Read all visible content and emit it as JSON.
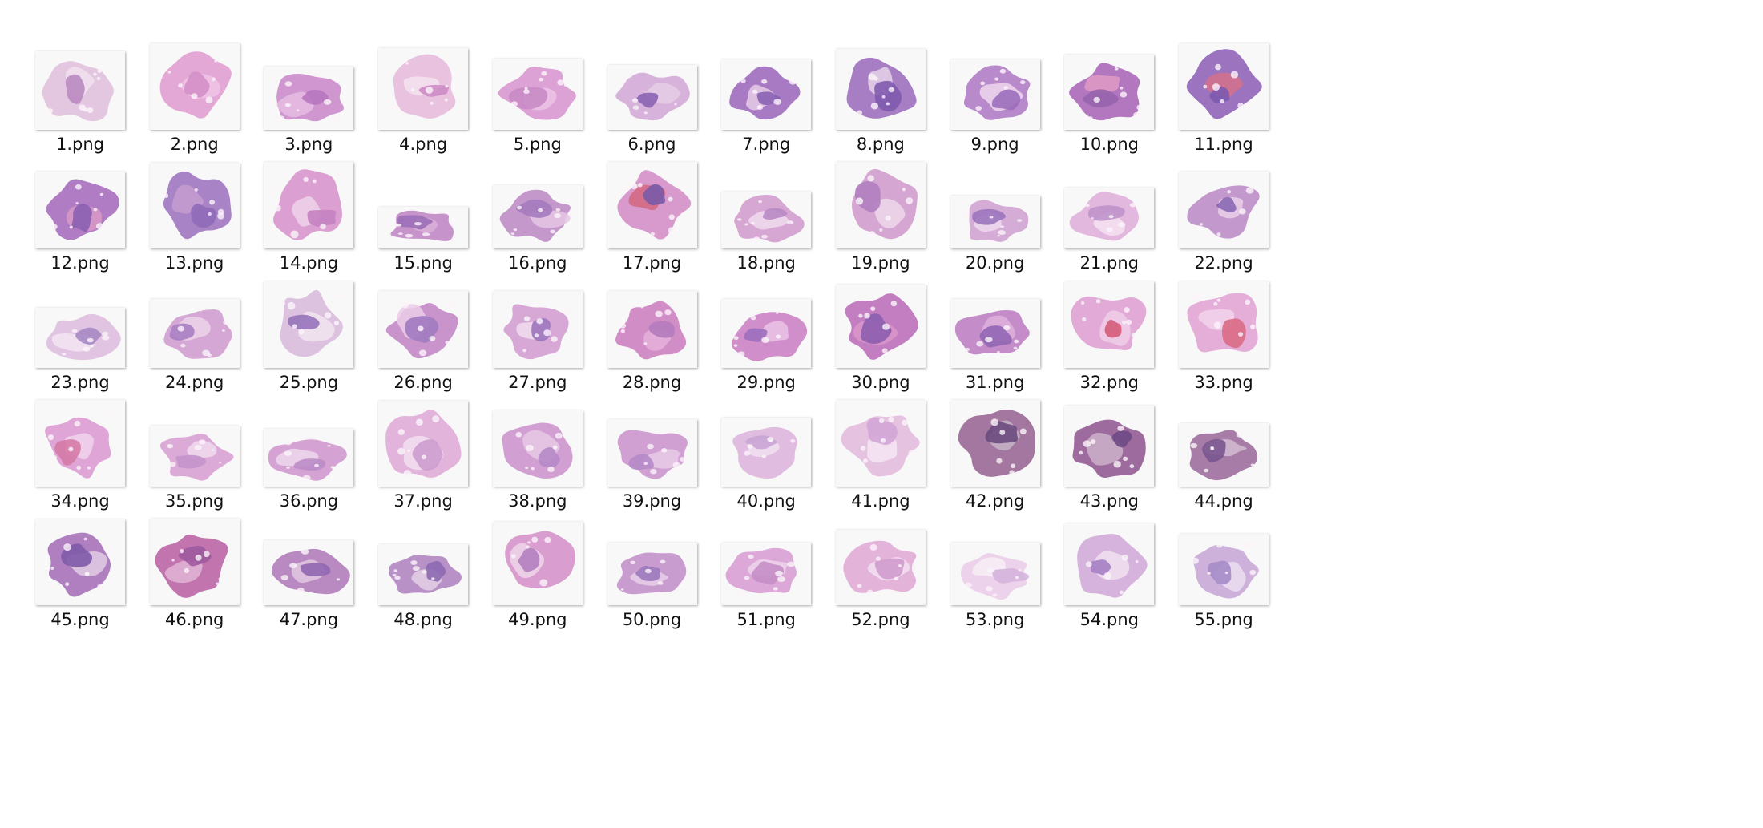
{
  "window": {
    "title": ""
  },
  "files": [
    {
      "name": "1.png",
      "w": 156,
      "h": 136,
      "colors": [
        "#e3c7e0",
        "#b98ac0",
        "#f1e0ee"
      ],
      "seed": 1
    },
    {
      "name": "2.png",
      "w": 156,
      "h": 150,
      "colors": [
        "#e4a8d6",
        "#d38fc8",
        "#efc4e6"
      ],
      "seed": 2
    },
    {
      "name": "3.png",
      "w": 156,
      "h": 110,
      "colors": [
        "#cf96cf",
        "#b777bf",
        "#e6bde3"
      ],
      "seed": 3
    },
    {
      "name": "4.png",
      "w": 156,
      "h": 142,
      "colors": [
        "#e8c2df",
        "#cd8bc5",
        "#f5e3f1"
      ],
      "seed": 4
    },
    {
      "name": "5.png",
      "w": 156,
      "h": 124,
      "colors": [
        "#dda2d5",
        "#c98bc5",
        "#ecc4e6"
      ],
      "seed": 5
    },
    {
      "name": "6.png",
      "w": 156,
      "h": 112,
      "colors": [
        "#d7b3db",
        "#8c64b4",
        "#e6cce6"
      ],
      "seed": 6
    },
    {
      "name": "7.png",
      "w": 156,
      "h": 122,
      "colors": [
        "#a77ac3",
        "#8862b2",
        "#e5cbe6"
      ],
      "seed": 7
    },
    {
      "name": "8.png",
      "w": 156,
      "h": 140,
      "colors": [
        "#a77dc3",
        "#7f5aae",
        "#e6d2e9"
      ],
      "seed": 8
    },
    {
      "name": "9.png",
      "w": 156,
      "h": 122,
      "colors": [
        "#b889cb",
        "#9c6fbb",
        "#eed8ef"
      ],
      "seed": 9
    },
    {
      "name": "10.png",
      "w": 156,
      "h": 130,
      "colors": [
        "#b277be",
        "#9663ad",
        "#df9bc6"
      ],
      "seed": 10
    },
    {
      "name": "11.png",
      "w": 156,
      "h": 150,
      "colors": [
        "#9b73bf",
        "#7d5aae",
        "#d5718a"
      ],
      "seed": 11
    },
    {
      "name": "12.png",
      "w": 156,
      "h": 134,
      "colors": [
        "#b07cc3",
        "#8a5fb0",
        "#d89ac7"
      ],
      "seed": 12
    },
    {
      "name": "13.png",
      "w": 156,
      "h": 148,
      "colors": [
        "#a883c5",
        "#8f6ab8",
        "#c59dd0"
      ],
      "seed": 13
    },
    {
      "name": "14.png",
      "w": 156,
      "h": 150,
      "colors": [
        "#dc9fd2",
        "#c482c1",
        "#efd2ea"
      ],
      "seed": 14
    },
    {
      "name": "15.png",
      "w": 156,
      "h": 72,
      "colors": [
        "#c694cb",
        "#9c6fb8",
        "#d9b0d8"
      ],
      "seed": 15
    },
    {
      "name": "16.png",
      "w": 156,
      "h": 110,
      "colors": [
        "#c598cc",
        "#a57bbe",
        "#e5c6e3"
      ],
      "seed": 16
    },
    {
      "name": "17.png",
      "w": 156,
      "h": 150,
      "colors": [
        "#d89acc",
        "#7a5aa8",
        "#d2667f"
      ],
      "seed": 17
    },
    {
      "name": "18.png",
      "w": 156,
      "h": 98,
      "colors": [
        "#d7a7d4",
        "#b98ac4",
        "#f0dcef"
      ],
      "seed": 18
    },
    {
      "name": "19.png",
      "w": 156,
      "h": 150,
      "colors": [
        "#d6a6d2",
        "#b17ec0",
        "#efd8ec"
      ],
      "seed": 19
    },
    {
      "name": "20.png",
      "w": 156,
      "h": 92,
      "colors": [
        "#d5acd6",
        "#9b74bc",
        "#efdbee"
      ],
      "seed": 20
    },
    {
      "name": "21.png",
      "w": 156,
      "h": 106,
      "colors": [
        "#e3b8de",
        "#bf94ca",
        "#f4e2f1"
      ],
      "seed": 21
    },
    {
      "name": "22.png",
      "w": 156,
      "h": 134,
      "colors": [
        "#c399cd",
        "#8868b4",
        "#e9cfe8"
      ],
      "seed": 22
    },
    {
      "name": "23.png",
      "w": 156,
      "h": 104,
      "colors": [
        "#e0c4e1",
        "#a788c4",
        "#f3e6f2"
      ],
      "seed": 23
    },
    {
      "name": "24.png",
      "w": 156,
      "h": 120,
      "colors": [
        "#d5a7d4",
        "#a87ec2",
        "#ecd4ea"
      ],
      "seed": 24
    },
    {
      "name": "25.png",
      "w": 156,
      "h": 150,
      "colors": [
        "#dcc2df",
        "#9674ba",
        "#f2e5f1"
      ],
      "seed": 25
    },
    {
      "name": "26.png",
      "w": 156,
      "h": 134,
      "colors": [
        "#c894cb",
        "#a17ac0",
        "#ebcde8"
      ],
      "seed": 26
    },
    {
      "name": "27.png",
      "w": 156,
      "h": 134,
      "colors": [
        "#d7a8d6",
        "#9b74bd",
        "#f1def0"
      ],
      "seed": 27
    },
    {
      "name": "28.png",
      "w": 156,
      "h": 134,
      "colors": [
        "#d18dc6",
        "#b47bbd",
        "#e6b2da"
      ],
      "seed": 28
    },
    {
      "name": "29.png",
      "w": 156,
      "h": 120,
      "colors": [
        "#d08fca",
        "#9d6fbc",
        "#ebc4e6"
      ],
      "seed": 29
    },
    {
      "name": "30.png",
      "w": 156,
      "h": 144,
      "colors": [
        "#c27ec1",
        "#8d5fb0",
        "#da95c8"
      ],
      "seed": 30
    },
    {
      "name": "31.png",
      "w": 156,
      "h": 120,
      "colors": [
        "#c48cc9",
        "#9266b4",
        "#dfb1dc"
      ],
      "seed": 31
    },
    {
      "name": "32.png",
      "w": 156,
      "h": 150,
      "colors": [
        "#e2aad7",
        "#d45b78",
        "#f0cfe9"
      ],
      "seed": 32
    },
    {
      "name": "33.png",
      "w": 156,
      "h": 150,
      "colors": [
        "#e4aed8",
        "#d96b86",
        "#f2d4ec"
      ],
      "seed": 33
    },
    {
      "name": "34.png",
      "w": 156,
      "h": 150,
      "colors": [
        "#dfa5d6",
        "#d57aa6",
        "#f0d3ec"
      ],
      "seed": 34
    },
    {
      "name": "35.png",
      "w": 156,
      "h": 106,
      "colors": [
        "#dcaad7",
        "#c394cc",
        "#f1dcef"
      ],
      "seed": 35
    },
    {
      "name": "36.png",
      "w": 156,
      "h": 100,
      "colors": [
        "#d5a3d3",
        "#bb8cc6",
        "#eed8ec"
      ],
      "seed": 36
    },
    {
      "name": "37.png",
      "w": 156,
      "h": 148,
      "colors": [
        "#e2b4dc",
        "#cd9ccf",
        "#f3dff0"
      ],
      "seed": 37
    },
    {
      "name": "38.png",
      "w": 156,
      "h": 132,
      "colors": [
        "#d29fd2",
        "#b68ac8",
        "#e8c8e5"
      ],
      "seed": 38
    },
    {
      "name": "39.png",
      "w": 156,
      "h": 116,
      "colors": [
        "#d0a0d2",
        "#b48ac8",
        "#e8cbe7"
      ],
      "seed": 39
    },
    {
      "name": "40.png",
      "w": 156,
      "h": 120,
      "colors": [
        "#e0bce0",
        "#c9a4d4",
        "#f1e0f0"
      ],
      "seed": 40
    },
    {
      "name": "41.png",
      "w": 156,
      "h": 150,
      "colors": [
        "#e6c2e1",
        "#d1a6d6",
        "#f5e5f3"
      ],
      "seed": 41
    },
    {
      "name": "42.png",
      "w": 156,
      "h": 150,
      "colors": [
        "#a3779f",
        "#6a4a7e",
        "#c7b4c6"
      ],
      "seed": 42
    },
    {
      "name": "43.png",
      "w": 156,
      "h": 140,
      "colors": [
        "#9e6b9e",
        "#6e4a85",
        "#cbb0c9"
      ],
      "seed": 43
    },
    {
      "name": "44.png",
      "w": 156,
      "h": 110,
      "colors": [
        "#a77ca6",
        "#7a5690",
        "#d3bcd2"
      ],
      "seed": 44
    },
    {
      "name": "45.png",
      "w": 156,
      "h": 148,
      "colors": [
        "#b07fc0",
        "#7f5aa9",
        "#e2cde4"
      ],
      "seed": 45
    },
    {
      "name": "46.png",
      "w": 156,
      "h": 150,
      "colors": [
        "#c274ae",
        "#9e5a9e",
        "#e2b4d6"
      ],
      "seed": 46
    },
    {
      "name": "47.png",
      "w": 156,
      "h": 112,
      "colors": [
        "#b88ac1",
        "#9066b0",
        "#e1c8e0"
      ],
      "seed": 47
    },
    {
      "name": "48.png",
      "w": 156,
      "h": 106,
      "colors": [
        "#b891c7",
        "#8d69b3",
        "#e3d0e5"
      ],
      "seed": 48
    },
    {
      "name": "49.png",
      "w": 156,
      "h": 144,
      "colors": [
        "#d99ecf",
        "#b37fc0",
        "#efd5ea"
      ],
      "seed": 49
    },
    {
      "name": "50.png",
      "w": 156,
      "h": 108,
      "colors": [
        "#c99ccf",
        "#9c79bd",
        "#e6d0e8"
      ],
      "seed": 50
    },
    {
      "name": "51.png",
      "w": 156,
      "h": 108,
      "colors": [
        "#dba8d8",
        "#c58fc8",
        "#efd5ee"
      ],
      "seed": 51
    },
    {
      "name": "52.png",
      "w": 156,
      "h": 130,
      "colors": [
        "#e3b3da",
        "#cf9bcd",
        "#f4e0f1"
      ],
      "seed": 52
    },
    {
      "name": "53.png",
      "w": 156,
      "h": 108,
      "colors": [
        "#ecd2ea",
        "#d5b4db",
        "#f8eef7"
      ],
      "seed": 53
    },
    {
      "name": "54.png",
      "w": 156,
      "h": 142,
      "colors": [
        "#d5b3dc",
        "#a57ec4",
        "#f1e2f0"
      ],
      "seed": 54
    },
    {
      "name": "55.png",
      "w": 156,
      "h": 124,
      "colors": [
        "#cdb1da",
        "#a68cc6",
        "#ecdff0"
      ],
      "seed": 55
    }
  ]
}
